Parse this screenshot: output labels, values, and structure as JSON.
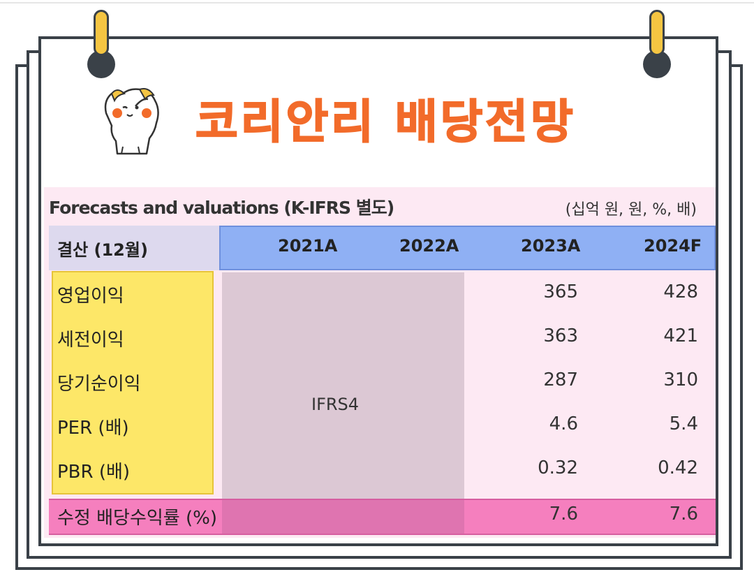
{
  "title": "코리안리 배당전망",
  "table": {
    "caption": "Forecasts and valuations (K-IFRS 별도)",
    "units": "(십억 원, 원, %, 배)",
    "header_label": "결산 (12월)",
    "years": [
      "2021A",
      "2022A",
      "2023A",
      "2024F"
    ],
    "merged_note": "IFRS4",
    "rows": [
      {
        "label": "영업이익",
        "v2023": "365",
        "v2024": "428"
      },
      {
        "label": "세전이익",
        "v2023": "363",
        "v2024": "421"
      },
      {
        "label": "당기순이익",
        "v2023": "287",
        "v2024": "310"
      },
      {
        "label": "PER (배)",
        "v2023": "4.6",
        "v2024": "5.4"
      },
      {
        "label": "PBR (배)",
        "v2023": "0.32",
        "v2024": "0.42"
      }
    ],
    "dividend_row": {
      "label": "수정 배당수익률 (%)",
      "v2023": "7.6",
      "v2024": "7.6"
    }
  },
  "colors": {
    "title": "#f26b2a",
    "frame": "#3a4148",
    "ring": "#f5c542",
    "header_years": "#8fb0f4",
    "label_column": "#fde768",
    "ifrs_block": "#dcc8d4",
    "dividend_row": "#f57fbe",
    "sheet": "#fde9f3"
  },
  "icons": [
    "binder-ring-icon",
    "cat-mascot-icon"
  ]
}
